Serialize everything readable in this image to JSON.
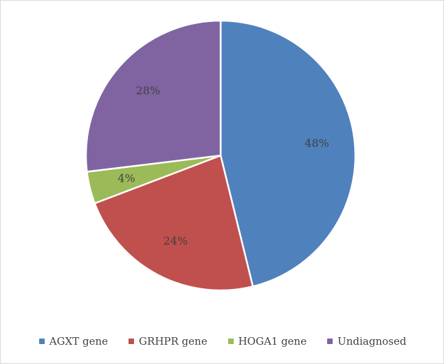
{
  "chart_data": {
    "type": "pie",
    "categories": [
      "AGXT gene",
      "GRHPR gene",
      "HOGA1 gene",
      "Undiagnosed"
    ],
    "values": [
      48,
      24,
      4,
      28
    ],
    "data_labels": [
      "48%",
      "24%",
      "4%",
      "28%"
    ],
    "colors": [
      "#4f81bd",
      "#c0504d",
      "#9bbb59",
      "#8064a2"
    ],
    "start_angle_deg": 0,
    "direction": "clockwise",
    "legend_position": "bottom",
    "title": ""
  }
}
